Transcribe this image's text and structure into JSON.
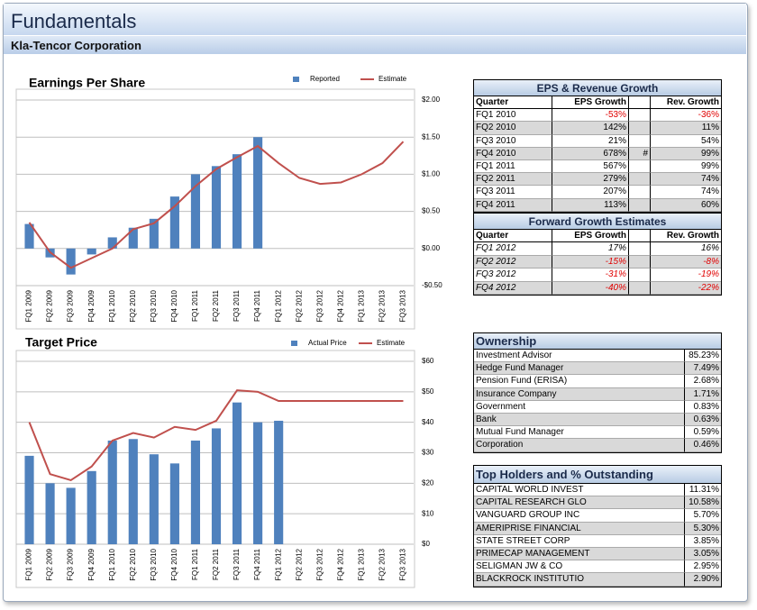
{
  "header": {
    "title": "Fundamentals",
    "subtitle": "Kla-Tencor Corporation"
  },
  "chart_data": [
    {
      "type": "combo",
      "title": "Earnings Per Share",
      "categories": [
        "FQ1 2009",
        "FQ2 2009",
        "FQ3 2009",
        "FQ4 2009",
        "FQ1 2010",
        "FQ2 2010",
        "FQ3 2010",
        "FQ4 2010",
        "FQ1 2011",
        "FQ2 2011",
        "FQ3 2011",
        "FQ4 2011",
        "FQ1 2012",
        "FQ2 2012",
        "FQ3 2012",
        "FQ4 2012",
        "FQ1 2013",
        "FQ2 2013",
        "FQ3 2013"
      ],
      "series": [
        {
          "name": "Reported",
          "kind": "bar",
          "color": "#4f81bd",
          "values": [
            0.33,
            -0.12,
            -0.35,
            -0.08,
            0.15,
            0.28,
            0.4,
            0.7,
            1.0,
            1.11,
            1.27,
            1.5,
            null,
            null,
            null,
            null,
            null,
            null,
            null
          ]
        },
        {
          "name": "Estimate",
          "kind": "line",
          "color": "#c0504d",
          "values": [
            0.35,
            -0.05,
            -0.26,
            -0.13,
            0.0,
            0.26,
            0.34,
            0.57,
            0.84,
            1.07,
            1.23,
            1.38,
            1.15,
            0.95,
            0.87,
            0.89,
            1.0,
            1.15,
            1.44
          ]
        }
      ],
      "ylim": [
        -0.5,
        2.0
      ],
      "yticks": [
        {
          "value": -0.5,
          "label": "-$0.50"
        },
        {
          "value": 0,
          "label": "$0.00"
        },
        {
          "value": 0.5,
          "label": "$0.50"
        },
        {
          "value": 1.0,
          "label": "$1.00"
        },
        {
          "value": 1.5,
          "label": "$1.50"
        },
        {
          "value": 2.0,
          "label": "$2.00"
        }
      ],
      "grid": true,
      "legend": "top-right"
    },
    {
      "type": "combo",
      "title": "Target Price",
      "categories": [
        "FQ1 2009",
        "FQ2 2009",
        "FQ3 2009",
        "FQ4 2009",
        "FQ1 2010",
        "FQ2 2010",
        "FQ3 2010",
        "FQ4 2010",
        "FQ1 2011",
        "FQ2 2011",
        "FQ3 2011",
        "FQ4 2011",
        "FQ1 2012",
        "FQ2 2012",
        "FQ3 2012",
        "FQ4 2012",
        "FQ1 2013",
        "FQ2 2013",
        "FQ3 2013"
      ],
      "series": [
        {
          "name": "Actual Price",
          "kind": "bar",
          "color": "#4f81bd",
          "values": [
            29,
            20,
            18.5,
            24,
            34,
            34.5,
            29.5,
            26.5,
            34,
            38,
            46.5,
            40,
            40.5,
            null,
            null,
            null,
            null,
            null,
            null
          ]
        },
        {
          "name": "Estimate",
          "kind": "line",
          "color": "#c0504d",
          "values": [
            40,
            23,
            21,
            25.5,
            34,
            36.5,
            35,
            38.5,
            37.5,
            40.5,
            50.5,
            50,
            47,
            47,
            47,
            47,
            47,
            47,
            47
          ]
        }
      ],
      "ylim": [
        0,
        60
      ],
      "yticks": [
        {
          "value": 0,
          "label": "$0"
        },
        {
          "value": 10,
          "label": "$10"
        },
        {
          "value": 20,
          "label": "$20"
        },
        {
          "value": 30,
          "label": "$30"
        },
        {
          "value": 40,
          "label": "$40"
        },
        {
          "value": 50,
          "label": "$50"
        },
        {
          "value": 60,
          "label": "$60"
        }
      ],
      "grid": true,
      "legend": "top-right"
    }
  ],
  "eps_growth": {
    "title": "EPS & Revenue Growth",
    "columns": [
      "Quarter",
      "EPS Growth",
      null,
      "Rev. Growth"
    ],
    "rows": [
      [
        "FQ1 2010",
        "-53%",
        null,
        "-36%"
      ],
      [
        "FQ2 2010",
        "142%",
        null,
        "11%"
      ],
      [
        "FQ3 2010",
        "21%",
        null,
        "54%"
      ],
      [
        "FQ4 2010",
        "678%",
        "#",
        "99%"
      ],
      [
        "FQ1 2011",
        "567%",
        null,
        "99%"
      ],
      [
        "FQ2 2011",
        "279%",
        null,
        "74%"
      ],
      [
        "FQ3 2011",
        "207%",
        null,
        "74%"
      ],
      [
        "FQ4 2011",
        "113%",
        null,
        "60%"
      ]
    ]
  },
  "forward_growth": {
    "title": "Forward Growth Estimates",
    "columns": [
      "Quarter",
      "EPS Growth",
      null,
      "Rev. Growth"
    ],
    "rows": [
      [
        "FQ1 2012",
        "17%",
        null,
        "16%"
      ],
      [
        "FQ2 2012",
        "-15%",
        null,
        "-8%"
      ],
      [
        "FQ3 2012",
        "-31%",
        null,
        "-19%"
      ],
      [
        "FQ4 2012",
        "-40%",
        null,
        "-22%"
      ]
    ]
  },
  "ownership": {
    "title": "Ownership",
    "rows": [
      [
        "Investment Advisor",
        "85.23%"
      ],
      [
        "Hedge Fund Manager",
        "7.49%"
      ],
      [
        "Pension Fund (ERISA)",
        "2.68%"
      ],
      [
        "Insurance Company",
        "1.71%"
      ],
      [
        "Government",
        "0.83%"
      ],
      [
        "Bank",
        "0.63%"
      ],
      [
        "Mutual Fund Manager",
        "0.59%"
      ],
      [
        "Corporation",
        "0.46%"
      ]
    ]
  },
  "top_holders": {
    "title": "Top Holders and % Outstanding",
    "rows": [
      [
        "CAPITAL WORLD INVEST",
        "11.31%"
      ],
      [
        "CAPITAL RESEARCH GLO",
        "10.58%"
      ],
      [
        "VANGUARD GROUP INC",
        "5.70%"
      ],
      [
        "AMERIPRISE FINANCIAL",
        "5.30%"
      ],
      [
        "STATE STREET CORP",
        "3.85%"
      ],
      [
        "PRIMECAP MANAGEMENT",
        "3.05%"
      ],
      [
        "SELIGMAN JW & CO",
        "2.95%"
      ],
      [
        "BLACKROCK INSTITUTIO",
        "2.90%"
      ]
    ]
  }
}
